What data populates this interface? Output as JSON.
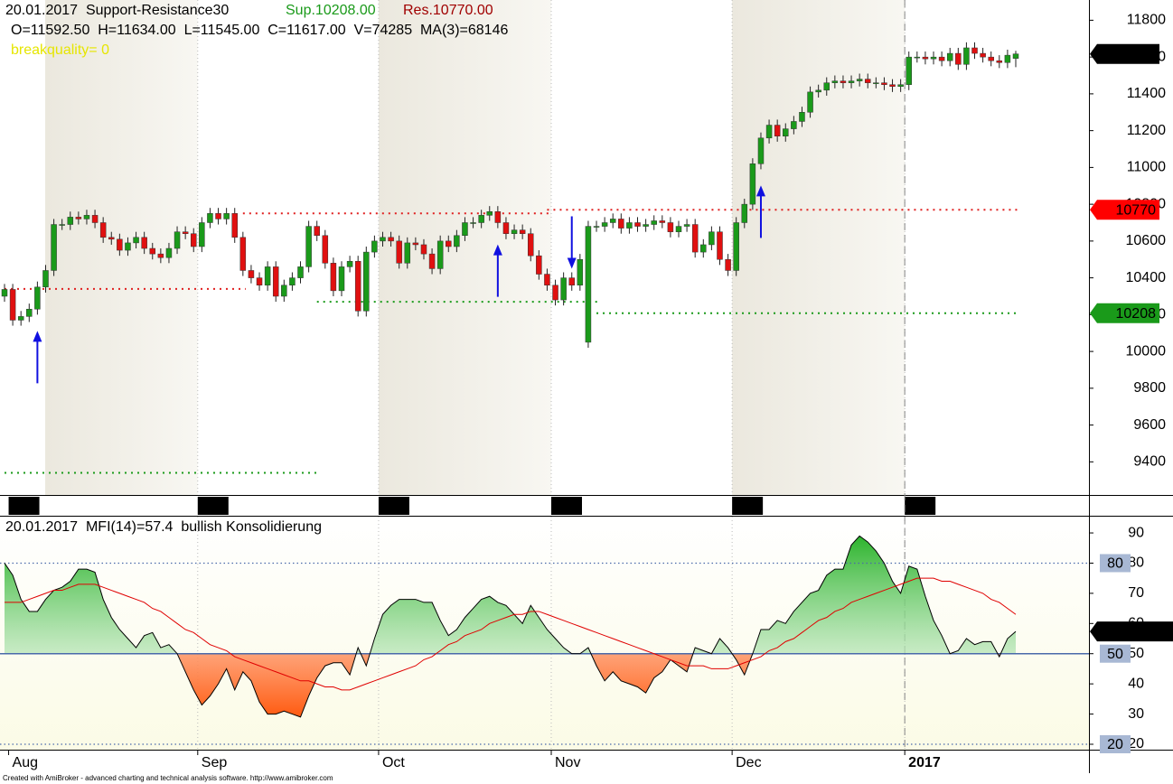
{
  "header": {
    "title": "20.01.2017  Support-Resistance30",
    "support": "Sup.10208.00",
    "resistance": "Res.10770.00",
    "ohlc": "O=11592.50  H=11634.00  L=11545.00  C=11617.00  V=74285  MA(3)=68146",
    "breakquality": "breakquality= 0"
  },
  "chart_data": [
    {
      "type": "candlestick",
      "categories": [
        null,
        "Aug",
        null,
        null,
        null,
        null,
        null,
        null,
        null,
        null,
        null,
        null,
        null,
        null,
        null,
        null,
        null,
        null,
        null,
        null,
        null,
        null,
        null,
        null,
        "Sep",
        null,
        null,
        null,
        null,
        null,
        null,
        null,
        null,
        null,
        null,
        null,
        null,
        null,
        null,
        null,
        null,
        null,
        null,
        null,
        null,
        null,
        "Oct",
        null,
        null,
        null,
        null,
        null,
        null,
        null,
        null,
        null,
        null,
        null,
        null,
        null,
        null,
        null,
        null,
        null,
        null,
        null,
        null,
        "Nov",
        null,
        null,
        null,
        null,
        null,
        null,
        null,
        null,
        null,
        null,
        null,
        null,
        null,
        null,
        null,
        null,
        null,
        null,
        null,
        null,
        null,
        "Dec",
        null,
        null,
        null,
        null,
        null,
        null,
        null,
        null,
        null,
        null,
        null,
        null,
        null,
        null,
        null,
        null,
        null,
        null,
        null,
        null,
        "2017",
        null,
        null,
        null,
        null,
        null,
        null,
        null,
        null,
        null,
        null,
        null,
        null,
        null
      ],
      "open": [
        10300,
        10337,
        10170,
        10190,
        10230,
        10350,
        10440,
        10690,
        10690,
        10730,
        10720,
        10740,
        10700,
        10620,
        10610,
        10550,
        10590,
        10620,
        10560,
        10530,
        10510,
        10560,
        10650,
        10640,
        10570,
        10700,
        10750,
        10720,
        10750,
        10620,
        10440,
        10400,
        10360,
        10460,
        10300,
        10360,
        10400,
        10460,
        10680,
        10630,
        10480,
        10330,
        10460,
        10490,
        10220,
        10540,
        10600,
        10620,
        10600,
        10480,
        10590,
        10580,
        10530,
        10450,
        10600,
        10570,
        10630,
        10700,
        10700,
        10740,
        10760,
        10700,
        10640,
        10660,
        10640,
        10520,
        10420,
        10360,
        10280,
        10400,
        10360,
        10050,
        10680,
        10680,
        10700,
        10720,
        10670,
        10700,
        10680,
        10690,
        10710,
        10700,
        10650,
        10680,
        10690,
        10540,
        10580,
        10650,
        10500,
        10440,
        10700,
        10800,
        11020,
        11160,
        11230,
        11170,
        11210,
        11250,
        11300,
        11410,
        11420,
        11460,
        11470,
        11460,
        11470,
        11480,
        11460,
        11460,
        11450,
        11440,
        11450,
        11600,
        11600,
        11590,
        11600,
        11580,
        11620,
        11560,
        11650,
        11620,
        11600,
        11580,
        11570,
        11592.5
      ],
      "high": [
        10367,
        10367,
        10220,
        10260,
        10380,
        10470,
        10720,
        10720,
        10760,
        10760,
        10770,
        10770,
        10730,
        10650,
        10640,
        10620,
        10650,
        10650,
        10590,
        10560,
        10590,
        10680,
        10680,
        10670,
        10730,
        10780,
        10780,
        10780,
        10780,
        10650,
        10470,
        10430,
        10490,
        10490,
        10390,
        10430,
        10490,
        10710,
        10710,
        10660,
        10510,
        10490,
        10520,
        10520,
        10570,
        10630,
        10650,
        10650,
        10630,
        10620,
        10620,
        10610,
        10560,
        10630,
        10630,
        10660,
        10730,
        10730,
        10770,
        10790,
        10790,
        10730,
        10690,
        10690,
        10670,
        10550,
        10450,
        10390,
        10430,
        10430,
        10530,
        10710,
        10710,
        10730,
        10750,
        10750,
        10730,
        10730,
        10720,
        10740,
        10740,
        10730,
        10710,
        10720,
        10720,
        10610,
        10680,
        10680,
        10530,
        10730,
        10830,
        11050,
        11190,
        11260,
        11260,
        11240,
        11280,
        11330,
        11440,
        11450,
        11490,
        11500,
        11500,
        11500,
        11510,
        11510,
        11490,
        11490,
        11480,
        11480,
        11630,
        11630,
        11630,
        11630,
        11630,
        11650,
        11650,
        11680,
        11680,
        11650,
        11630,
        11610,
        11640,
        11634
      ],
      "low": [
        10270,
        10140,
        10140,
        10160,
        10200,
        10320,
        10410,
        10660,
        10660,
        10690,
        10690,
        10670,
        10590,
        10580,
        10520,
        10520,
        10560,
        10530,
        10500,
        10480,
        10480,
        10530,
        10610,
        10540,
        10540,
        10670,
        10690,
        10690,
        10590,
        10410,
        10370,
        10330,
        10330,
        10270,
        10270,
        10330,
        10370,
        10430,
        10600,
        10450,
        10300,
        10300,
        10430,
        10190,
        10190,
        10510,
        10570,
        10570,
        10450,
        10450,
        10550,
        10500,
        10420,
        10420,
        10540,
        10540,
        10600,
        10670,
        10670,
        10710,
        10670,
        10610,
        10610,
        10610,
        10490,
        10390,
        10330,
        10250,
        10250,
        10330,
        10330,
        10020,
        10650,
        10650,
        10670,
        10640,
        10640,
        10650,
        10650,
        10660,
        10670,
        10620,
        10620,
        10650,
        10510,
        10510,
        10550,
        10470,
        10410,
        10410,
        10670,
        10770,
        10990,
        11130,
        11140,
        11140,
        11180,
        11220,
        11270,
        11380,
        11390,
        11430,
        11430,
        11430,
        11440,
        11430,
        11430,
        11420,
        11410,
        11410,
        11420,
        11570,
        11560,
        11560,
        11550,
        11550,
        11530,
        11530,
        11590,
        11570,
        11550,
        11540,
        11540,
        11545
      ],
      "close": [
        10337,
        10170,
        10190,
        10230,
        10350,
        10440,
        10690,
        10690,
        10730,
        10720,
        10740,
        10700,
        10620,
        10610,
        10550,
        10590,
        10620,
        10560,
        10530,
        10510,
        10560,
        10650,
        10640,
        10570,
        10700,
        10750,
        10720,
        10750,
        10620,
        10440,
        10400,
        10360,
        10460,
        10300,
        10360,
        10400,
        10460,
        10680,
        10630,
        10480,
        10330,
        10460,
        10490,
        10220,
        10540,
        10600,
        10620,
        10600,
        10480,
        10590,
        10580,
        10530,
        10450,
        10600,
        10570,
        10630,
        10700,
        10700,
        10740,
        10760,
        10700,
        10640,
        10660,
        10640,
        10520,
        10420,
        10360,
        10280,
        10400,
        10360,
        10500,
        10680,
        10680,
        10700,
        10720,
        10670,
        10700,
        10680,
        10690,
        10710,
        10700,
        10650,
        10680,
        10690,
        10540,
        10580,
        10650,
        10500,
        10440,
        10700,
        10800,
        11020,
        11160,
        11230,
        11170,
        11210,
        11250,
        11300,
        11410,
        11420,
        11460,
        11470,
        11460,
        11470,
        11480,
        11460,
        11460,
        11450,
        11440,
        11450,
        11600,
        11600,
        11590,
        11600,
        11580,
        11620,
        11560,
        11650,
        11620,
        11600,
        11580,
        11570,
        11610,
        11617
      ],
      "up_color": "#1a9a1a",
      "down_color": "#e01010",
      "ylim": [
        9220,
        11910
      ],
      "yticks": [
        9400,
        9600,
        9800,
        10000,
        10200,
        10400,
        10600,
        10800,
        11000,
        11200,
        11400,
        11600,
        11800
      ],
      "levels": [
        {
          "value": 10340,
          "color": "#e02020",
          "from": 0,
          "to": 29
        },
        {
          "value": 10750,
          "color": "#e02020",
          "from": 29,
          "to": 66
        },
        {
          "value": 10770,
          "color": "#e02020",
          "from": 66,
          "to": 123,
          "tag": true
        },
        {
          "value": 9340,
          "color": "#1a9a1a",
          "from": 0,
          "to": 38
        },
        {
          "value": 10270,
          "color": "#1a9a1a",
          "from": 38,
          "to": 72
        },
        {
          "value": 10208,
          "color": "#1a9a1a",
          "from": 72,
          "to": 123,
          "tag": true
        }
      ],
      "buy_signals": [
        4,
        60,
        92
      ],
      "sell_signals": [
        69
      ],
      "signal_color": "#1010e0"
    },
    {
      "type": "line",
      "title": "20.01.2017  MFI(14)=57.4  bullish Konsolidierung",
      "series": [
        {
          "color": "#000000",
          "values": [
            80,
            76,
            68,
            64,
            64,
            68,
            71,
            72,
            74,
            78,
            78,
            77,
            68,
            62,
            58,
            55,
            52,
            56,
            57,
            52,
            53,
            50,
            44,
            38,
            33,
            36,
            40,
            45,
            38,
            44,
            41,
            34,
            30,
            30,
            31,
            30,
            29,
            36,
            42,
            46,
            47,
            47,
            43,
            52,
            46,
            55,
            63,
            66,
            68,
            68,
            68,
            67,
            67,
            61,
            56,
            58,
            62,
            65,
            68,
            69,
            67,
            66,
            63,
            60,
            66,
            62,
            58,
            55,
            52,
            50,
            50,
            52,
            46,
            41,
            44,
            41,
            40,
            39,
            37,
            42,
            44,
            48,
            46,
            44,
            52,
            51,
            50,
            55,
            52,
            48,
            43,
            50,
            58,
            58,
            61,
            60,
            64,
            67,
            70,
            71,
            76,
            78,
            78,
            86,
            89,
            87,
            84,
            80,
            74,
            70,
            79,
            78,
            69,
            61,
            56,
            50,
            51,
            55,
            53,
            54,
            54,
            49,
            55,
            57.3521
          ]
        },
        {
          "color": "#e00000",
          "values": [
            67,
            67,
            67,
            68,
            69,
            70,
            71,
            71,
            72,
            73,
            73,
            73,
            72,
            71,
            70,
            69,
            68,
            67,
            65,
            64,
            62,
            60,
            58,
            57,
            55,
            53,
            52,
            51,
            49,
            48,
            47,
            46,
            45,
            44,
            43,
            42,
            41,
            41,
            40,
            39,
            39,
            38,
            38,
            39,
            40,
            41,
            42,
            43,
            44,
            45,
            46,
            48,
            49,
            51,
            53,
            54,
            56,
            57,
            58,
            60,
            61,
            62,
            63,
            63,
            64,
            64,
            63,
            62,
            61,
            60,
            59,
            58,
            57,
            56,
            55,
            54,
            53,
            52,
            51,
            50,
            49,
            48,
            47,
            46,
            46,
            46,
            45,
            45,
            45,
            46,
            47,
            48,
            49,
            51,
            52,
            54,
            55,
            57,
            59,
            61,
            62,
            64,
            65,
            67,
            68,
            69,
            70,
            71,
            72,
            73,
            74,
            75,
            75,
            75,
            74,
            74,
            73,
            72,
            71,
            70,
            68,
            67,
            65,
            63
          ]
        }
      ],
      "baseline": 50,
      "above_color": "#2db42d",
      "below_color": "#ff5a10",
      "ylim": [
        18.2,
        95.4
      ],
      "yticks": [
        20,
        30,
        40,
        50,
        60,
        70,
        80,
        90
      ],
      "levels": [
        {
          "value": 80,
          "style": "dotted"
        },
        {
          "value": 50,
          "style": "solid"
        },
        {
          "value": 20,
          "style": "dotted"
        }
      ],
      "level_color": "#4a6aaa"
    }
  ],
  "footer": "Created with AmiBroker - advanced charting and technical analysis software. http://www.amibroker.com"
}
